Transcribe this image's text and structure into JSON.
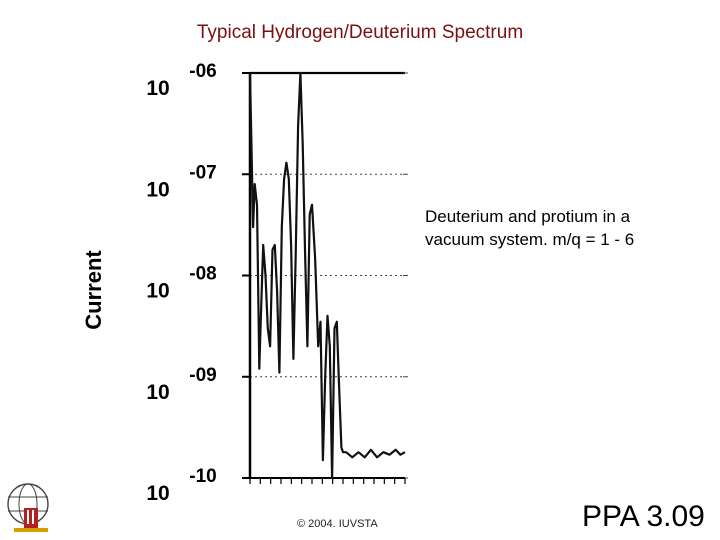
{
  "slide": {
    "title": "Typical Hydrogen/Deuterium Spectrum",
    "annotation_line1": "Deuterium and protium in a",
    "annotation_line2": "vacuum system. m/q = 1 - 6",
    "copyright": "© 2004. IUVSTA",
    "slide_id": "PPA 3.09",
    "title_color": "#7a1010"
  },
  "chart_data": {
    "type": "line",
    "title": "",
    "ylabel": "Current",
    "xlabel": "",
    "yscale": "log",
    "ylim": [
      1e-10,
      1e-06
    ],
    "xlim": [
      0,
      1
    ],
    "grid": true,
    "y_ticks": [
      {
        "base": "10",
        "exp": "-06",
        "value": 1e-06
      },
      {
        "base": "10",
        "exp": "-07",
        "value": 1e-07
      },
      {
        "base": "10",
        "exp": "-08",
        "value": 1e-08
      },
      {
        "base": "10",
        "exp": "-09",
        "value": 1e-09
      },
      {
        "base": "10",
        "exp": "-10",
        "value": 1e-10
      }
    ],
    "series": [
      {
        "x": [
          0.0,
          0.02,
          0.03,
          0.045,
          0.06,
          0.07,
          0.085,
          0.1,
          0.115,
          0.13,
          0.145,
          0.16,
          0.175,
          0.19,
          0.205,
          0.22,
          0.235,
          0.25,
          0.265,
          0.28,
          0.295,
          0.31,
          0.325,
          0.34,
          0.355,
          0.37,
          0.385,
          0.4,
          0.42,
          0.44,
          0.455,
          0.47,
          0.485,
          0.5,
          0.515,
          0.53,
          0.545,
          0.56,
          0.575,
          0.59,
          0.6,
          0.62,
          0.66,
          0.7,
          0.74,
          0.78,
          0.82,
          0.86,
          0.9,
          0.94,
          0.97,
          1.0
        ],
        "y": [
          1e-06,
          3e-08,
          8e-08,
          5e-08,
          1.2e-09,
          4e-09,
          2e-08,
          1e-08,
          3e-09,
          2e-09,
          1.8e-08,
          2e-08,
          7e-09,
          1.1e-09,
          3e-08,
          9e-08,
          1.3e-07,
          9e-08,
          2e-08,
          1.5e-09,
          1.6e-08,
          3e-07,
          1e-06,
          2e-07,
          1.8e-08,
          2e-09,
          4e-08,
          5e-08,
          1.5e-08,
          2e-09,
          3.5e-09,
          1.5e-10,
          1e-09,
          4e-09,
          2e-09,
          1e-10,
          3e-09,
          3.5e-09,
          8e-10,
          2e-10,
          1.8e-10,
          1.8e-10,
          1.6e-10,
          1.8e-10,
          1.6e-10,
          1.9e-10,
          1.6e-10,
          1.8e-10,
          1.7e-10,
          1.9e-10,
          1.7e-10,
          1.8e-10
        ]
      }
    ]
  }
}
